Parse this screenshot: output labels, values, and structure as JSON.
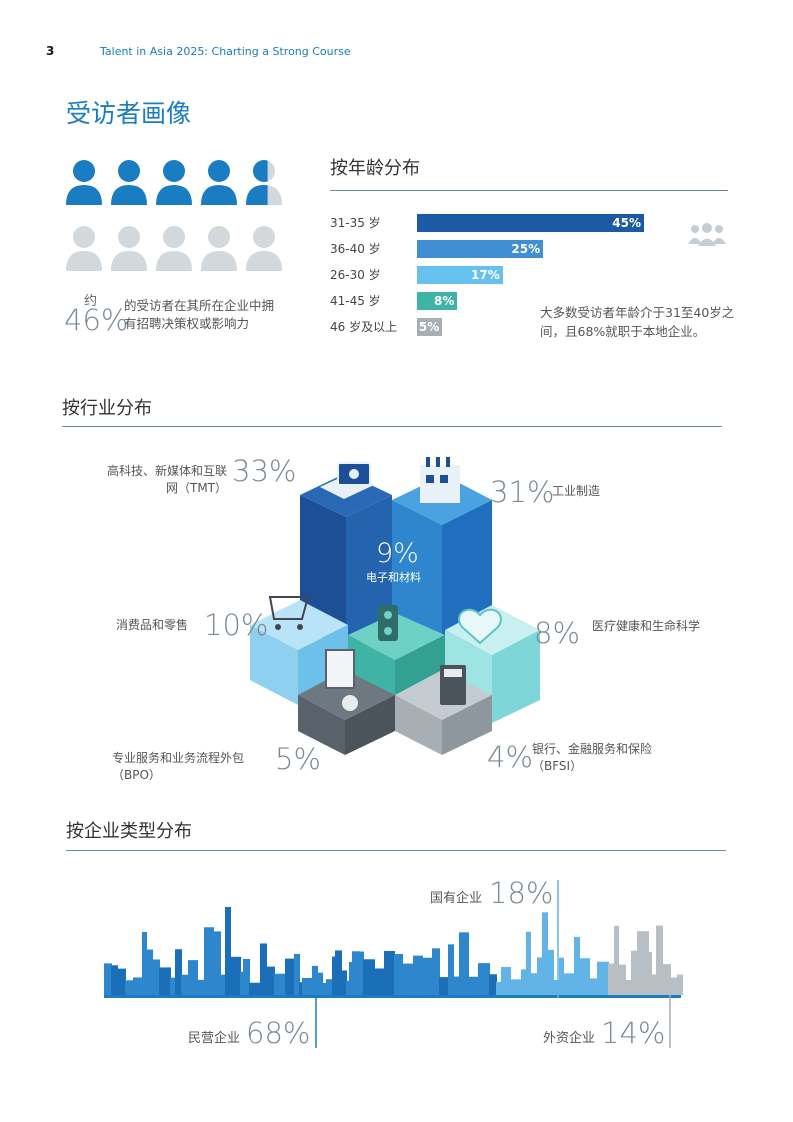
{
  "header": {
    "page_number": "3",
    "doc_title": "Talent in Asia 2025: Charting a Strong Course"
  },
  "title": "受访者画像",
  "hiring": {
    "approx": "约",
    "percent": "46%",
    "text": "的受访者在其所在企业中拥有招聘决策权或影响力",
    "share": 0.46
  },
  "age": {
    "title": "按年龄分布",
    "note": "大多数受访者年龄介于31至40岁之间，且68%就职于本地企业。",
    "icon": "people-group-icon"
  },
  "industry": {
    "title": "按行业分布",
    "tmt_pct": "33%",
    "tmt_label": "高科技、新媒体和互联网（TMT）",
    "mfg_pct": "31%",
    "mfg_label": "工业制造",
    "elec_pct": "9%",
    "elec_label": "电子和材料",
    "consumer_pct": "10%",
    "consumer_label": "消费品和零售",
    "health_pct": "8%",
    "health_label": "医疗健康和生命科学",
    "bpo_pct": "5%",
    "bpo_label": "专业服务和业务流程外包（BPO）",
    "bfsi_pct": "4%",
    "bfsi_label": "银行、金融服务和保险（BFSI）"
  },
  "company": {
    "title": "按企业类型分布",
    "soe_label": "国有企业",
    "soe_pct": "18%",
    "private_label": "民营企业",
    "private_pct": "68%",
    "foreign_label": "外资企业",
    "foreign_pct": "14%"
  },
  "colors": {
    "accent": "#1a7cc1",
    "dark_blue": "#1c5aa6",
    "mid_blue": "#3f8fd2",
    "light_blue": "#66c1ee",
    "teal": "#3fb3a6",
    "gray": "#a7aeb4"
  },
  "chart_data": {
    "type": "bar",
    "categories": [
      "31-35 岁",
      "36-40 岁",
      "26-30 岁",
      "41-45 岁",
      "46 岁及以上"
    ],
    "values": [
      45,
      25,
      17,
      8,
      5
    ],
    "labels": [
      "45%",
      "25%",
      "17%",
      "8%",
      "5%"
    ],
    "colors": [
      "#1c5aa6",
      "#3f8fd2",
      "#66c1ee",
      "#3fb3a6",
      "#a7aeb4"
    ]
  }
}
